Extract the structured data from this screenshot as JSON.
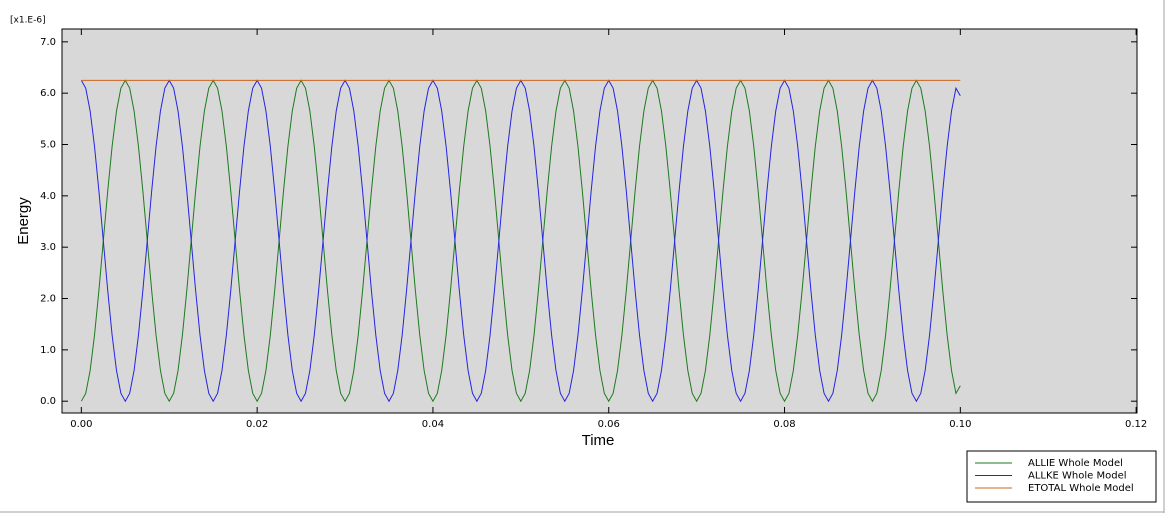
{
  "chart_data": {
    "type": "line",
    "scale_label": "[x1.E-6]",
    "xlabel": "Time",
    "ylabel": "Energy",
    "x": [
      0,
      0.0005,
      0.001,
      0.0015,
      0.002,
      0.0025,
      0.003,
      0.0035,
      0.004,
      0.0045,
      0.005,
      0.0055,
      0.006,
      0.0065,
      0.007,
      0.0075,
      0.008,
      0.0085,
      0.009,
      0.0095,
      0.01,
      0.0105,
      0.011,
      0.0115,
      0.012,
      0.0125,
      0.013,
      0.0135,
      0.014,
      0.0145,
      0.015,
      0.0155,
      0.016,
      0.0165,
      0.017,
      0.0175,
      0.018,
      0.0185,
      0.019,
      0.0195,
      0.02,
      0.0205,
      0.021,
      0.0215,
      0.022,
      0.0225,
      0.023,
      0.0235,
      0.024,
      0.0245,
      0.025,
      0.0255,
      0.026,
      0.0265,
      0.027,
      0.0275,
      0.028,
      0.0285,
      0.029,
      0.0295,
      0.03,
      0.0305,
      0.031,
      0.0315,
      0.032,
      0.0325,
      0.033,
      0.0335,
      0.034,
      0.0345,
      0.035,
      0.0355,
      0.036,
      0.0365,
      0.037,
      0.0375,
      0.038,
      0.0385,
      0.039,
      0.0395,
      0.04,
      0.0405,
      0.041,
      0.0415,
      0.042,
      0.0425,
      0.043,
      0.0435,
      0.044,
      0.0445,
      0.045,
      0.0455,
      0.046,
      0.0465,
      0.047,
      0.0475,
      0.048,
      0.0485,
      0.049,
      0.0495,
      0.05,
      0.0505,
      0.051,
      0.0515,
      0.052,
      0.0525,
      0.053,
      0.0535,
      0.054,
      0.0545,
      0.055,
      0.0555,
      0.056,
      0.0565,
      0.057,
      0.0575,
      0.058,
      0.0585,
      0.059,
      0.0595,
      0.06,
      0.0605,
      0.061,
      0.0615,
      0.062,
      0.0625,
      0.063,
      0.0635,
      0.064,
      0.0645,
      0.065,
      0.0655,
      0.066,
      0.0665,
      0.067,
      0.0675,
      0.068,
      0.0685,
      0.069,
      0.0695,
      0.07,
      0.0705,
      0.071,
      0.0715,
      0.072,
      0.0725,
      0.073,
      0.0735,
      0.074,
      0.0745,
      0.075,
      0.0755,
      0.076,
      0.0765,
      0.077,
      0.0775,
      0.078,
      0.0785,
      0.079,
      0.0795,
      0.08,
      0.0805,
      0.081,
      0.0815,
      0.082,
      0.0825,
      0.083,
      0.0835,
      0.084,
      0.0845,
      0.085,
      0.0855,
      0.086,
      0.0865,
      0.087,
      0.0875,
      0.088,
      0.0885,
      0.089,
      0.0895,
      0.09,
      0.0905,
      0.091,
      0.0915,
      0.092,
      0.0925,
      0.093,
      0.0935,
      0.094,
      0.0945,
      0.095,
      0.0955,
      0.096,
      0.0965,
      0.097,
      0.0975,
      0.098,
      0.0985,
      0.099,
      0.0995,
      0.1
    ],
    "series": [
      {
        "name": "ALLIE Whole Model",
        "color": "#1e7a1e",
        "values": [
          0,
          0.153,
          0.597,
          1.288,
          2.159,
          3.125,
          4.091,
          4.962,
          5.653,
          6.097,
          6.25,
          6.097,
          5.653,
          4.962,
          4.091,
          3.125,
          2.159,
          1.288,
          0.597,
          0.153,
          0,
          0.153,
          0.597,
          1.288,
          2.159,
          3.125,
          4.091,
          4.962,
          5.653,
          6.097,
          6.25,
          6.097,
          5.653,
          4.962,
          4.091,
          3.125,
          2.159,
          1.288,
          0.597,
          0.153,
          0,
          0.153,
          0.597,
          1.288,
          2.159,
          3.125,
          4.091,
          4.962,
          5.653,
          6.097,
          6.25,
          6.097,
          5.653,
          4.962,
          4.091,
          3.125,
          2.159,
          1.288,
          0.597,
          0.153,
          0,
          0.153,
          0.597,
          1.288,
          2.159,
          3.125,
          4.091,
          4.962,
          5.653,
          6.097,
          6.25,
          6.097,
          5.653,
          4.962,
          4.091,
          3.125,
          2.159,
          1.288,
          0.597,
          0.153,
          0,
          0.153,
          0.597,
          1.288,
          2.159,
          3.125,
          4.091,
          4.962,
          5.653,
          6.097,
          6.25,
          6.097,
          5.653,
          4.962,
          4.091,
          3.125,
          2.159,
          1.288,
          0.597,
          0.153,
          0,
          0.153,
          0.597,
          1.288,
          2.159,
          3.125,
          4.091,
          4.962,
          5.653,
          6.097,
          6.25,
          6.097,
          5.653,
          4.962,
          4.091,
          3.125,
          2.159,
          1.288,
          0.597,
          0.153,
          0,
          0.153,
          0.597,
          1.288,
          2.159,
          3.125,
          4.091,
          4.962,
          5.653,
          6.097,
          6.25,
          6.097,
          5.653,
          4.962,
          4.091,
          3.125,
          2.159,
          1.288,
          0.597,
          0.153,
          0,
          0.153,
          0.597,
          1.288,
          2.159,
          3.125,
          4.091,
          4.962,
          5.653,
          6.097,
          6.25,
          6.097,
          5.653,
          4.962,
          4.091,
          3.125,
          2.159,
          1.288,
          0.597,
          0.153,
          0,
          0.153,
          0.597,
          1.288,
          2.159,
          3.125,
          4.091,
          4.962,
          5.653,
          6.097,
          6.25,
          6.097,
          5.653,
          4.962,
          4.091,
          3.125,
          2.159,
          1.288,
          0.597,
          0.153,
          0,
          0.153,
          0.597,
          1.288,
          2.159,
          3.125,
          4.091,
          4.962,
          5.653,
          6.097,
          6.25,
          6.097,
          5.653,
          4.962,
          4.091,
          3.125,
          2.159,
          1.288,
          0.597,
          0.153,
          0.3
        ]
      },
      {
        "name": "ALLKE Whole Model",
        "color": "#2424e0",
        "values": [
          6.25,
          6.097,
          5.653,
          4.962,
          4.091,
          3.125,
          2.159,
          1.288,
          0.597,
          0.153,
          0,
          0.153,
          0.597,
          1.288,
          2.159,
          3.125,
          4.091,
          4.962,
          5.653,
          6.097,
          6.25,
          6.097,
          5.653,
          4.962,
          4.091,
          3.125,
          2.159,
          1.288,
          0.597,
          0.153,
          0,
          0.153,
          0.597,
          1.288,
          2.159,
          3.125,
          4.091,
          4.962,
          5.653,
          6.097,
          6.25,
          6.097,
          5.653,
          4.962,
          4.091,
          3.125,
          2.159,
          1.288,
          0.597,
          0.153,
          0,
          0.153,
          0.597,
          1.288,
          2.159,
          3.125,
          4.091,
          4.962,
          5.653,
          6.097,
          6.25,
          6.097,
          5.653,
          4.962,
          4.091,
          3.125,
          2.159,
          1.288,
          0.597,
          0.153,
          0,
          0.153,
          0.597,
          1.288,
          2.159,
          3.125,
          4.091,
          4.962,
          5.653,
          6.097,
          6.25,
          6.097,
          5.653,
          4.962,
          4.091,
          3.125,
          2.159,
          1.288,
          0.597,
          0.153,
          0,
          0.153,
          0.597,
          1.288,
          2.159,
          3.125,
          4.091,
          4.962,
          5.653,
          6.097,
          6.25,
          6.097,
          5.653,
          4.962,
          4.091,
          3.125,
          2.159,
          1.288,
          0.597,
          0.153,
          0,
          0.153,
          0.597,
          1.288,
          2.159,
          3.125,
          4.091,
          4.962,
          5.653,
          6.097,
          6.25,
          6.097,
          5.653,
          4.962,
          4.091,
          3.125,
          2.159,
          1.288,
          0.597,
          0.153,
          0,
          0.153,
          0.597,
          1.288,
          2.159,
          3.125,
          4.091,
          4.962,
          5.653,
          6.097,
          6.25,
          6.097,
          5.653,
          4.962,
          4.091,
          3.125,
          2.159,
          1.288,
          0.597,
          0.153,
          0,
          0.153,
          0.597,
          1.288,
          2.159,
          3.125,
          4.091,
          4.962,
          5.653,
          6.097,
          6.25,
          6.097,
          5.653,
          4.962,
          4.091,
          3.125,
          2.159,
          1.288,
          0.597,
          0.153,
          0,
          0.153,
          0.597,
          1.288,
          2.159,
          3.125,
          4.091,
          4.962,
          5.653,
          6.097,
          6.25,
          6.097,
          5.653,
          4.962,
          4.091,
          3.125,
          2.159,
          1.288,
          0.597,
          0.153,
          0,
          0.153,
          0.597,
          1.288,
          2.159,
          3.125,
          4.091,
          4.962,
          5.653,
          6.097,
          5.95
        ]
      },
      {
        "name": "ETOTAL Whole Model",
        "color": "#d0641e",
        "values": [
          6.25,
          6.25,
          6.25,
          6.25,
          6.25,
          6.25,
          6.25,
          6.25,
          6.25,
          6.25,
          6.25,
          6.25,
          6.25,
          6.25,
          6.25,
          6.25,
          6.25,
          6.25,
          6.25,
          6.25,
          6.25,
          6.25,
          6.25,
          6.25,
          6.25,
          6.25,
          6.25,
          6.25,
          6.25,
          6.25,
          6.25,
          6.25,
          6.25,
          6.25,
          6.25,
          6.25,
          6.25,
          6.25,
          6.25,
          6.25,
          6.25,
          6.25,
          6.25,
          6.25,
          6.25,
          6.25,
          6.25,
          6.25,
          6.25,
          6.25,
          6.25,
          6.25,
          6.25,
          6.25,
          6.25,
          6.25,
          6.25,
          6.25,
          6.25,
          6.25,
          6.25,
          6.25,
          6.25,
          6.25,
          6.25,
          6.25,
          6.25,
          6.25,
          6.25,
          6.25,
          6.25,
          6.25,
          6.25,
          6.25,
          6.25,
          6.25,
          6.25,
          6.25,
          6.25,
          6.25,
          6.25,
          6.25,
          6.25,
          6.25,
          6.25,
          6.25,
          6.25,
          6.25,
          6.25,
          6.25,
          6.25,
          6.25,
          6.25,
          6.25,
          6.25,
          6.25,
          6.25,
          6.25,
          6.25,
          6.25,
          6.25,
          6.25,
          6.25,
          6.25,
          6.25,
          6.25,
          6.25,
          6.25,
          6.25,
          6.25,
          6.25,
          6.25,
          6.25,
          6.25,
          6.25,
          6.25,
          6.25,
          6.25,
          6.25,
          6.25,
          6.25,
          6.25,
          6.25,
          6.25,
          6.25,
          6.25,
          6.25,
          6.25,
          6.25,
          6.25,
          6.25,
          6.25,
          6.25,
          6.25,
          6.25,
          6.25,
          6.25,
          6.25,
          6.25,
          6.25,
          6.25,
          6.25,
          6.25,
          6.25,
          6.25,
          6.25,
          6.25,
          6.25,
          6.25,
          6.25,
          6.25,
          6.25,
          6.25,
          6.25,
          6.25,
          6.25,
          6.25,
          6.25,
          6.25,
          6.25,
          6.25,
          6.25,
          6.25,
          6.25,
          6.25,
          6.25,
          6.25,
          6.25,
          6.25,
          6.25,
          6.25,
          6.25,
          6.25,
          6.25,
          6.25,
          6.25,
          6.25,
          6.25,
          6.25,
          6.25,
          6.25,
          6.25,
          6.25,
          6.25,
          6.25,
          6.25,
          6.25,
          6.25,
          6.25,
          6.25,
          6.25,
          6.25,
          6.25,
          6.25,
          6.25,
          6.25,
          6.25,
          6.25,
          6.25,
          6.25,
          6.25
        ]
      }
    ],
    "xlim": [
      -0.0022,
      0.1201
    ],
    "ylim": [
      -0.23,
      7.25
    ],
    "xticks": [
      {
        "value": 0,
        "label": "0.00"
      },
      0.02,
      0.04,
      0.06,
      0.08,
      {
        "value": 0.1,
        "label": "0.10"
      },
      0.12
    ],
    "yticks": [
      {
        "value": 0,
        "label": "0.0"
      },
      {
        "value": 1,
        "label": "1.0"
      },
      {
        "value": 2,
        "label": "2.0"
      },
      {
        "value": 3,
        "label": "3.0"
      },
      {
        "value": 4,
        "label": "4.0"
      },
      {
        "value": 5,
        "label": "5.0"
      },
      {
        "value": 6,
        "label": "6.0"
      },
      {
        "value": 7,
        "label": "7.0"
      }
    ],
    "grid": false,
    "legend": "below-right"
  }
}
